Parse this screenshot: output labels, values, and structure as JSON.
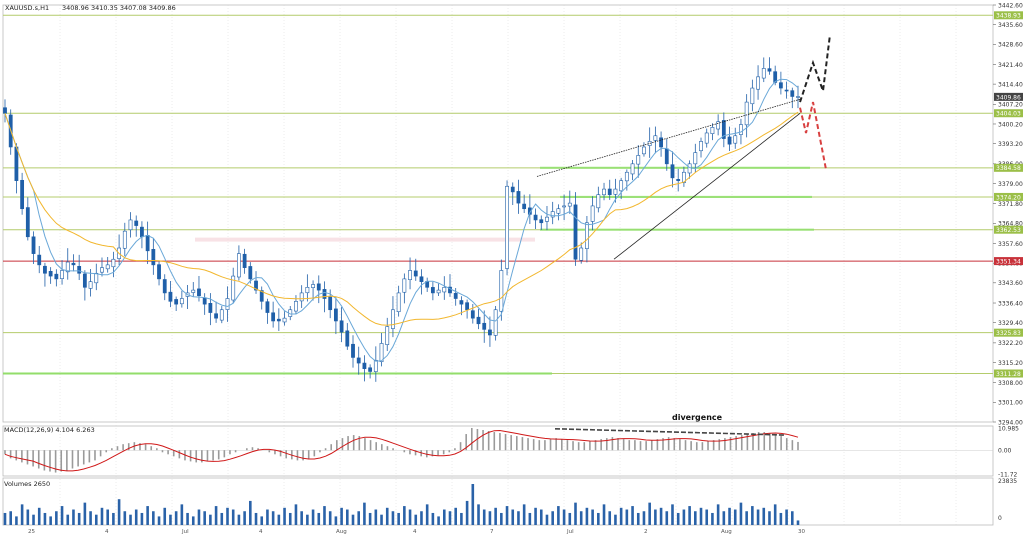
{
  "header": {
    "symbol_label": "XAUUSD.s,H1",
    "ohlc_label": "3408.96 3410.35 3407.08 3409.86"
  },
  "main": {
    "price_ticks": [
      "3442.60",
      "3435.60",
      "3428.60",
      "3421.40",
      "3414.40",
      "3407.20",
      "3400.20",
      "3393.20",
      "3386.00",
      "3379.00",
      "3371.80",
      "3364.80",
      "3357.60",
      "3350.60",
      "3343.60",
      "3336.40",
      "3329.40",
      "3322.20",
      "3315.20",
      "3308.00",
      "3301.00",
      "3294.00"
    ],
    "level_lines": [
      {
        "price": 3438.93,
        "label": "3438.93",
        "kind": "resistance"
      },
      {
        "price": 3404.03,
        "label": "3404.03",
        "kind": "resistance"
      },
      {
        "price": 3384.58,
        "label": "3384.58",
        "kind": "resistance"
      },
      {
        "price": 3374.2,
        "label": "3374.20",
        "kind": "resistance"
      },
      {
        "price": 3362.53,
        "label": "3362.53",
        "kind": "resistance"
      },
      {
        "price": 3351.34,
        "label": "3351.34",
        "kind": "pivot"
      },
      {
        "price": 3325.83,
        "label": "3325.83",
        "kind": "resistance"
      },
      {
        "price": 3311.28,
        "label": "3311.28",
        "kind": "resistance"
      }
    ],
    "current_price_label": "3409.86",
    "wedge": {
      "upper": [
        [
          537,
          3381.5
        ],
        [
          800,
          3409
        ]
      ],
      "lower": [
        [
          614,
          3352
        ],
        [
          800,
          3404
        ]
      ]
    },
    "forecast_up": [
      [
        800,
        3408
      ],
      [
        813,
        3422
      ],
      [
        823,
        3412
      ],
      [
        830,
        3432
      ]
    ],
    "forecast_down": [
      [
        800,
        3406
      ],
      [
        806,
        3397
      ],
      [
        813,
        3408
      ],
      [
        826,
        3384
      ]
    ],
    "colors": {
      "bull": "#1f5fa8",
      "bear": "#1f5fa8",
      "ma_fast": "#6aa8d8",
      "ma_slow": "#f2b72e",
      "level": "#b4cc6c",
      "pivot": "#c8323a",
      "label_bg": "#9bbf48",
      "divergence": "#444444"
    }
  },
  "macd": {
    "label": "MACD(12,26,9) 4.104 6.263",
    "ticks": [
      "10.985",
      "0.00",
      "-11.72"
    ],
    "annotation": "divergence"
  },
  "volume": {
    "label": "Volumes 2650",
    "ticks": [
      "23835",
      "0"
    ]
  },
  "time_axis": {
    "labels": [
      "25",
      "4",
      "Jul",
      "4",
      "Aug",
      "4",
      "7",
      "Jul",
      "2",
      "Aug",
      "30"
    ]
  },
  "chart_data": [
    {
      "type": "line",
      "title": "XAUUSD.s,H1",
      "ylim": [
        3294.0,
        3442.6
      ],
      "series": [
        {
          "name": "XAUUSD.s,H1",
          "values": [
            3404,
            3392,
            3380,
            3370,
            3360,
            3354,
            3350,
            3347,
            3346,
            3345,
            3348,
            3351,
            3350,
            3347,
            3342,
            3344,
            3347,
            3349,
            3350,
            3352,
            3356,
            3362,
            3366,
            3364,
            3360,
            3355,
            3350,
            3345,
            3340,
            3337,
            3336,
            3338,
            3340,
            3341,
            3339,
            3336,
            3333,
            3331,
            3334,
            3338,
            3346,
            3354,
            3349,
            3345,
            3341,
            3337,
            3333,
            3330,
            3330,
            3331,
            3334,
            3337,
            3340,
            3342,
            3343,
            3341,
            3338,
            3334,
            3330,
            3326,
            3321,
            3317,
            3315,
            3313,
            3312,
            3316,
            3322,
            3328,
            3334,
            3340,
            3345,
            3348,
            3346,
            3344,
            3342,
            3340,
            3341,
            3342,
            3340,
            3338,
            3336,
            3334,
            3331,
            3329,
            3327,
            3325,
            3334,
            3348,
            3378,
            3376,
            3372,
            3370,
            3368,
            3366,
            3365,
            3367,
            3369,
            3370,
            3371,
            3372,
            3352,
            3356,
            3365,
            3371,
            3375,
            3377,
            3375,
            3377,
            3380,
            3383,
            3386,
            3389,
            3392,
            3394,
            3396,
            3392,
            3386,
            3381,
            3380,
            3383,
            3386,
            3390,
            3394,
            3397,
            3399,
            3401,
            3395,
            3393,
            3396,
            3400,
            3408,
            3413,
            3417,
            3420,
            3419,
            3415,
            3413,
            3412,
            3410,
            3410
          ]
        }
      ],
      "levels": [
        3438.93,
        3404.03,
        3384.58,
        3374.2,
        3362.53,
        3351.34,
        3325.83,
        3311.28
      ]
    },
    {
      "type": "bar",
      "title": "MACD(12,26,9) 4.104 6.263",
      "ylim": [
        -11.72,
        10.985
      ],
      "series": [
        {
          "name": "MACD",
          "values": [
            -2,
            -4,
            -5,
            -6,
            -7,
            -8,
            -9,
            -10,
            -10.5,
            -11,
            -10.5,
            -10,
            -9,
            -8,
            -7,
            -6,
            -5,
            -3,
            -1,
            1,
            2,
            3,
            3.5,
            4,
            3.5,
            3,
            2,
            1,
            -1,
            -2,
            -3,
            -4,
            -5,
            -5.5,
            -6,
            -6,
            -5.5,
            -5,
            -4.5,
            -3.5,
            -2,
            -1,
            0,
            1,
            1.5,
            1,
            0,
            -1,
            -2,
            -3,
            -4,
            -4.5,
            -5,
            -5,
            -4.5,
            -3,
            -1,
            1,
            3,
            5,
            6,
            7,
            7.5,
            7,
            6,
            5,
            4,
            3,
            2,
            1,
            0,
            -1,
            -2,
            -2.5,
            -3,
            -3.5,
            -3,
            -2.5,
            -2,
            -1,
            1,
            4,
            8,
            11,
            10.5,
            10,
            9.5,
            9,
            8.5,
            8,
            7.5,
            7,
            6.5,
            6,
            5.5,
            5,
            5,
            5.5,
            6,
            5.5,
            5,
            4.5,
            4,
            4,
            4.5,
            5,
            5.5,
            6,
            6.5,
            6,
            5.5,
            5,
            5,
            4.5,
            4.5,
            5,
            5.5,
            6,
            6.5,
            6,
            5.5,
            5,
            4.5,
            4,
            4,
            4.5,
            5,
            5.5,
            6,
            6.5,
            7,
            7.5,
            8,
            8.5,
            9,
            9,
            8.5,
            8,
            7,
            6,
            5,
            4.104
          ]
        },
        {
          "name": "Signal",
          "values": []
        }
      ]
    },
    {
      "type": "bar",
      "title": "Volumes 2650",
      "ylim": [
        0,
        23835
      ],
      "series": [
        {
          "name": "Volumes",
          "values": [
            7000,
            8000,
            5000,
            12000,
            9000,
            6000,
            10000,
            7000,
            5000,
            8000,
            11000,
            6000,
            9000,
            7000,
            13000,
            8000,
            6000,
            10000,
            9000,
            7000,
            15000,
            8000,
            6000,
            9000,
            7000,
            11000,
            8000,
            5000,
            10000,
            6000,
            8000,
            12000,
            7000,
            5000,
            9000,
            8000,
            6000,
            11000,
            7000,
            10000,
            9000,
            6000,
            8000,
            14000,
            7000,
            5000,
            9000,
            8000,
            6000,
            10000,
            7000,
            12000,
            8000,
            6000,
            9000,
            7000,
            11000,
            8000,
            5000,
            10000,
            9000,
            6000,
            8000,
            13000,
            7000,
            9000,
            6000,
            10000,
            8000,
            7000,
            11000,
            9000,
            6000,
            8000,
            12000,
            7000,
            5000,
            9000,
            8000,
            10000,
            7000,
            14000,
            23835,
            12000,
            9000,
            8000,
            10000,
            7000,
            11000,
            9000,
            8000,
            12000,
            7000,
            10000,
            9000,
            6000,
            8000,
            11000,
            9000,
            7000,
            13000,
            8000,
            10000,
            9000,
            7000,
            12000,
            8000,
            6000,
            10000,
            9000,
            11000,
            7000,
            8000,
            13000,
            9000,
            10000,
            8000,
            12000,
            7000,
            9000,
            11000,
            8000,
            10000,
            9000,
            7000,
            12000,
            8000,
            10000,
            9000,
            13000,
            8000,
            11000,
            9000,
            10000,
            8000,
            12000,
            7000,
            9000,
            8000,
            2650
          ]
        }
      ]
    }
  ]
}
